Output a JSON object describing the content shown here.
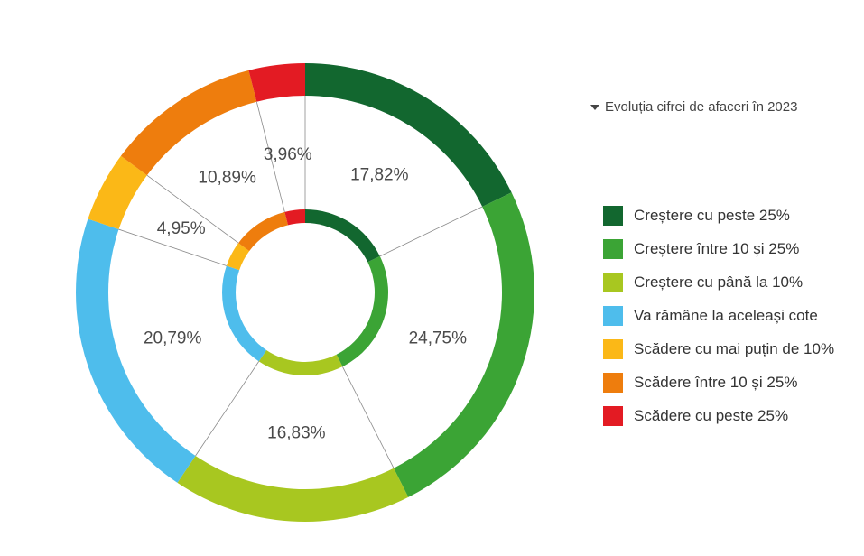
{
  "legend_title": "Evoluția cifrei de afaceri în 2023",
  "chart_data": {
    "type": "pie",
    "title": "Evoluția cifrei de afaceri în 2023",
    "series": [
      {
        "name": "Creștere cu peste 25%",
        "value": 17.82,
        "label": "17,82%",
        "color": "#12672f"
      },
      {
        "name": "Creștere între 10 și 25%",
        "value": 24.75,
        "label": "24,75%",
        "color": "#3ba435"
      },
      {
        "name": "Creștere cu până la 10%",
        "value": 16.83,
        "label": "16,83%",
        "color": "#a8c720"
      },
      {
        "name": "Va rămâne la aceleași cote",
        "value": 20.79,
        "label": "20,79%",
        "color": "#4ebdec"
      },
      {
        "name": "Scădere cu mai puțin de 10%",
        "value": 4.95,
        "label": "4,95%",
        "color": "#fbb817"
      },
      {
        "name": "Scădere între 10 și 25%",
        "value": 10.89,
        "label": "10,89%",
        "color": "#ee7d0d"
      },
      {
        "name": "Scădere cu peste 25%",
        "value": 3.96,
        "label": "3,96%",
        "color": "#e31b23"
      }
    ],
    "legend_position": "right"
  }
}
